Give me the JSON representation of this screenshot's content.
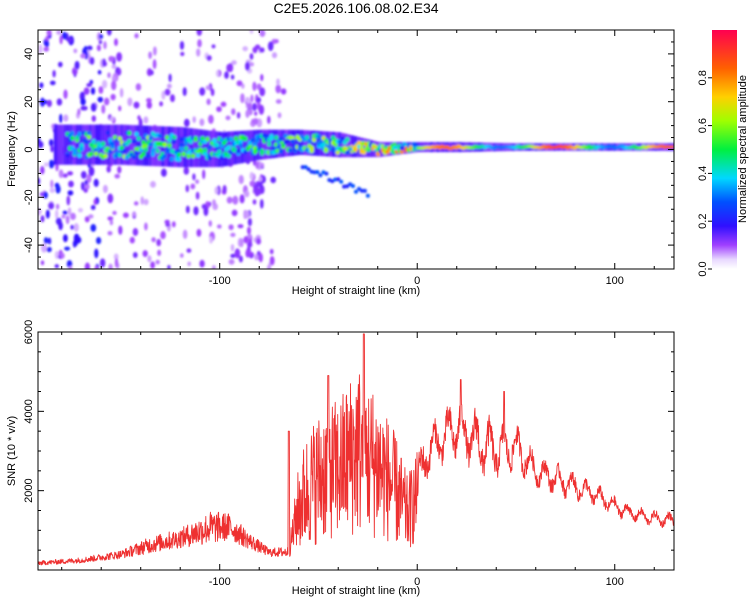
{
  "page_title": "C2E5.2026.106.08.02.E34",
  "chart_data": [
    {
      "type": "heatmap",
      "name": "spectrogram",
      "xlabel": "Height of straight line (km)",
      "ylabel": "Frequency (Hz)",
      "xlim": [
        -192,
        130
      ],
      "ylim": [
        -50,
        50
      ],
      "xticks": [
        -100,
        0,
        100
      ],
      "xtick_labels": [
        "-100",
        "0",
        "100"
      ],
      "yticks": [
        -40,
        -20,
        0,
        20,
        40
      ],
      "ytick_labels": [
        "-40",
        "-20",
        "0",
        "20",
        "40"
      ],
      "colorbar": {
        "label": "Normalized spectral amplitude",
        "range": [
          0,
          1
        ],
        "ticks": [
          0,
          0.2,
          0.4,
          0.6,
          0.8
        ],
        "tick_labels": [
          "0.0",
          "0.2",
          "0.4",
          "0.6",
          "0.8"
        ]
      },
      "ridge": {
        "description_units": "frequency center (Hz) vs height (km)",
        "height_km": [
          -170,
          -150,
          -120,
          -100,
          -80,
          -60,
          -40,
          -20,
          0,
          20,
          50,
          80,
          100,
          130
        ],
        "center_hz": [
          2,
          2,
          1,
          0,
          2,
          3,
          2,
          0,
          1,
          1,
          1,
          1,
          1,
          1
        ],
        "spread_hz": [
          8,
          8,
          8,
          7,
          6,
          5,
          5,
          3,
          2,
          2,
          1.5,
          1.5,
          1.5,
          1.5
        ],
        "peak_amplitude": [
          0.55,
          0.6,
          0.55,
          0.5,
          0.55,
          0.6,
          0.65,
          0.75,
          0.85,
          0.9,
          0.95,
          0.97,
          0.92,
          0.9
        ]
      }
    },
    {
      "type": "line",
      "name": "snr",
      "xlabel": "Height of straight line (km)",
      "ylabel": "SNR (10 * v/v)",
      "xlim": [
        -192,
        130
      ],
      "ylim": [
        0,
        6000
      ],
      "xticks": [
        -100,
        0,
        100
      ],
      "xtick_labels": [
        "-100",
        "0",
        "100"
      ],
      "yticks": [
        2000,
        4000,
        6000
      ],
      "ytick_labels": [
        "2000",
        "4000",
        "6000"
      ],
      "series": [
        {
          "name": "SNR",
          "color": "#ee3030",
          "x": [
            -192,
            -170,
            -150,
            -135,
            -120,
            -105,
            -95,
            -85,
            -75,
            -65,
            -60,
            -55,
            -50,
            -45,
            -40,
            -35,
            -30,
            -25,
            -20,
            -15,
            -10,
            -5,
            0,
            5,
            10,
            20,
            25,
            30,
            40,
            50,
            60,
            70,
            80,
            90,
            100,
            110,
            120,
            130
          ],
          "base": [
            150,
            220,
            350,
            550,
            700,
            900,
            950,
            650,
            400,
            400,
            1200,
            1600,
            1900,
            2200,
            2100,
            2300,
            2400,
            2300,
            2200,
            2000,
            1700,
            1300,
            2000,
            3000,
            3200,
            3600,
            3400,
            3200,
            3000,
            3100,
            2500,
            2300,
            2100,
            1900,
            1600,
            1400,
            1300,
            1250
          ],
          "noise": [
            80,
            100,
            150,
            300,
            350,
            600,
            500,
            300,
            150,
            200,
            1500,
            1900,
            2000,
            2000,
            2100,
            2400,
            2800,
            2400,
            2200,
            1800,
            1500,
            1000,
            900,
            700,
            600,
            800,
            700,
            900,
            700,
            600,
            400,
            400,
            350,
            300,
            250,
            200,
            200,
            200
          ],
          "peaks": [
            [
              -27,
              5950
            ],
            [
              -45,
              4900
            ],
            [
              22,
              4800
            ],
            [
              44,
              4500
            ],
            [
              -65,
              3500
            ]
          ]
        }
      ]
    }
  ]
}
